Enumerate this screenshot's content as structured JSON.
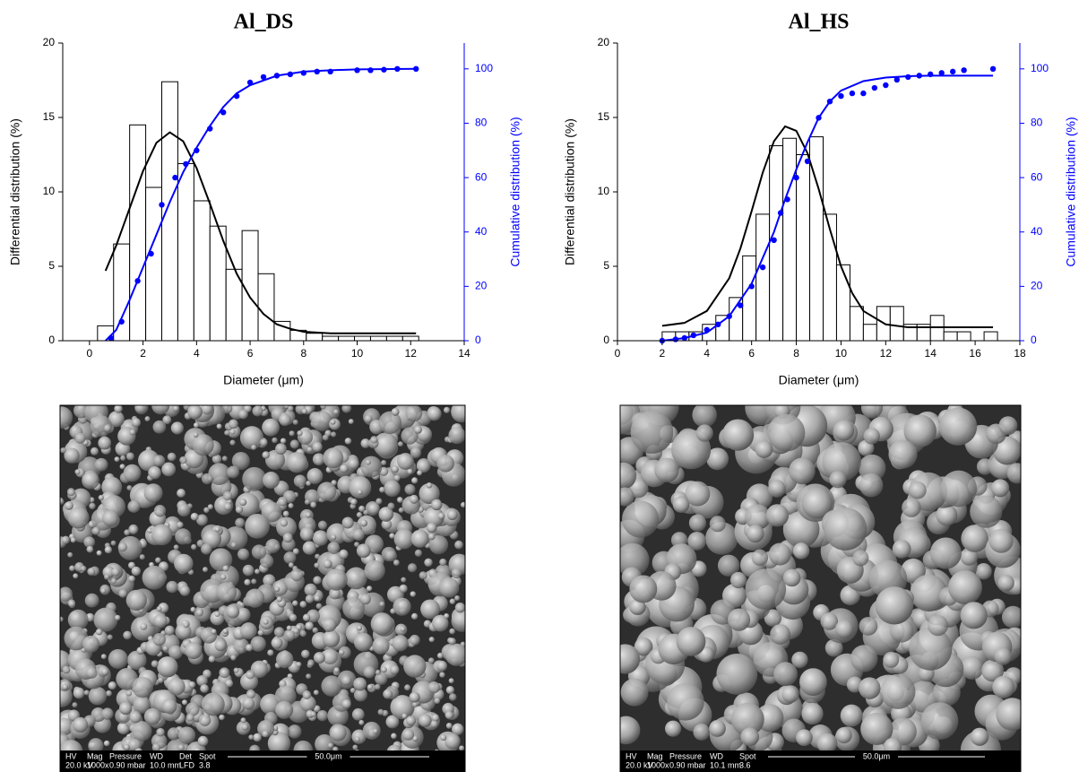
{
  "chart_data": [
    {
      "type": "histogram",
      "title": "Al_DS",
      "xlabel": "Diameter (μm)",
      "ylabel": "Differential distribution (%)",
      "y2label": "Cumulative distribution (%)",
      "xlim": [
        -1,
        14
      ],
      "xticks": [
        0,
        2,
        4,
        6,
        8,
        10,
        12,
        14
      ],
      "ylim": [
        0,
        20
      ],
      "yticks": [
        0,
        5,
        10,
        15,
        20
      ],
      "y2lim": [
        0,
        109.5
      ],
      "y2ticks": [
        0,
        20,
        40,
        60,
        80,
        100
      ],
      "bar_color": "#000000",
      "y2_color": "#0000ff",
      "bins": [
        0.3,
        0.9,
        1.5,
        2.1,
        2.7,
        3.3,
        3.9,
        4.5,
        5.1,
        5.7,
        6.3,
        6.9,
        7.5,
        8.1,
        8.7,
        9.3,
        9.9,
        10.5,
        11.1,
        11.7,
        12.3
      ],
      "counts": [
        1,
        6.5,
        14.5,
        10.3,
        17.4,
        11.9,
        9.4,
        7.7,
        4.8,
        7.4,
        4.5,
        1.3,
        0.7,
        0.5,
        0.3,
        0.3,
        0.3,
        0.3,
        0.3,
        0.3
      ],
      "series": [
        {
          "type": "line",
          "color": "#000000",
          "x": [
            0.6,
            1,
            1.5,
            2,
            2.5,
            3,
            3.5,
            4,
            4.5,
            5,
            5.5,
            6,
            6.5,
            7,
            7.5,
            8,
            9,
            10,
            12.2
          ],
          "values": [
            4.7,
            6.4,
            8.9,
            11.4,
            13.3,
            14,
            13.4,
            11.6,
            9.2,
            6.7,
            4.5,
            2.9,
            1.8,
            1.1,
            0.8,
            0.6,
            0.5,
            0.5,
            0.5
          ]
        },
        {
          "type": "scatter",
          "color": "#0000ff",
          "axis": "y2",
          "x": [
            0.8,
            1.2,
            1.8,
            2.3,
            2.7,
            3.2,
            3.6,
            4,
            4.5,
            5,
            5.5,
            6,
            6.5,
            7,
            7.5,
            8,
            8.5,
            9,
            10,
            10.5,
            11,
            11.5,
            12.2
          ],
          "values": [
            1,
            7,
            22,
            32,
            50,
            60,
            65,
            70,
            78,
            84,
            90,
            95,
            97,
            97.5,
            98,
            98.5,
            99,
            99,
            99.5,
            99.5,
            99.7,
            100,
            100
          ]
        },
        {
          "type": "line",
          "color": "#0000ff",
          "axis": "y2",
          "x": [
            0.6,
            1,
            1.5,
            2,
            2.5,
            3,
            3.5,
            4,
            4.5,
            5,
            5.5,
            6,
            7,
            8,
            9,
            10,
            12.2
          ],
          "values": [
            0,
            4,
            15,
            27,
            39,
            51,
            62,
            71,
            79,
            86,
            91,
            94,
            97.5,
            99,
            99.5,
            99.8,
            100
          ]
        }
      ]
    },
    {
      "type": "histogram",
      "title": "Al_HS",
      "xlabel": "Diameter (μm)",
      "ylabel": "Differential distribution (%)",
      "y2label": "Cumulative distribution (%)",
      "xlim": [
        0,
        18
      ],
      "xticks": [
        0,
        2,
        4,
        6,
        8,
        10,
        12,
        14,
        16,
        18
      ],
      "ylim": [
        0,
        20
      ],
      "yticks": [
        0,
        5,
        10,
        15,
        20
      ],
      "y2lim": [
        0,
        109.5
      ],
      "y2ticks": [
        0,
        20,
        40,
        60,
        80,
        100
      ],
      "bar_color": "#000000",
      "y2_color": "#0000ff",
      "bins": [
        2,
        2.6,
        3.2,
        3.8,
        4.4,
        5,
        5.6,
        6.2,
        6.8,
        7.4,
        8,
        8.6,
        9.2,
        9.8,
        10.4,
        11,
        11.6,
        12.2,
        12.8,
        13.4,
        14,
        14.6,
        15.2,
        15.8,
        16.4,
        17
      ],
      "counts": [
        0.6,
        0.6,
        0.6,
        1.1,
        1.7,
        2.9,
        5.7,
        8.5,
        13.1,
        13.6,
        12.5,
        13.7,
        8.5,
        5.1,
        2.3,
        1.1,
        2.3,
        2.3,
        1.1,
        1.1,
        1.7,
        0.6,
        0.6,
        0,
        0.6
      ],
      "series": [
        {
          "type": "line",
          "color": "#000000",
          "x": [
            2,
            3,
            4,
            5,
            5.5,
            6,
            6.5,
            7,
            7.5,
            8,
            8.5,
            9,
            9.5,
            10,
            10.5,
            11,
            12,
            13,
            14,
            16.8
          ],
          "values": [
            1,
            1.2,
            2,
            4.2,
            6.2,
            8.7,
            11.3,
            13.4,
            14.4,
            14.1,
            12.6,
            10.2,
            7.5,
            5,
            3.2,
            2,
            1.1,
            0.9,
            0.9,
            0.9
          ]
        },
        {
          "type": "scatter",
          "color": "#0000ff",
          "axis": "y2",
          "x": [
            2,
            2.6,
            3,
            3.4,
            4,
            4.5,
            5,
            5.5,
            6,
            6.5,
            7,
            7.3,
            7.6,
            8,
            8.5,
            9,
            9.5,
            10,
            10.5,
            11,
            11.5,
            12,
            12.5,
            13,
            13.5,
            14,
            14.5,
            15,
            15.5,
            16.8
          ],
          "values": [
            0,
            0.5,
            1,
            2,
            4,
            6,
            9,
            13,
            20,
            27,
            37,
            47,
            52,
            60,
            66,
            82,
            88,
            90,
            91,
            91,
            93,
            94,
            96,
            97,
            97.5,
            98,
            98.5,
            99,
            99.5,
            100
          ]
        },
        {
          "type": "line",
          "color": "#0000ff",
          "axis": "y2",
          "x": [
            2,
            3,
            4,
            5,
            6,
            7,
            7.5,
            8,
            8.5,
            9,
            9.5,
            10,
            11,
            12,
            13,
            14,
            16.8
          ],
          "values": [
            0,
            1,
            3,
            9,
            21,
            40,
            52,
            63,
            73,
            82,
            88,
            92,
            95.5,
            96.8,
            97.3,
            97.5,
            97.5
          ]
        }
      ]
    }
  ],
  "micrographs": [
    {
      "fields": [
        "HV",
        "Mag",
        "Pressure",
        "WD",
        "Det",
        "Spot"
      ],
      "settings": [
        "20.0 kV",
        "1000x",
        "0.90 mbar",
        "10.0 mm",
        "LFD",
        "3.8"
      ],
      "scale": "50.0μm"
    },
    {
      "fields": [
        "HV",
        "Mag",
        "Pressure",
        "WD",
        "Spot"
      ],
      "settings": [
        "20.0 kV",
        "1000x",
        "0.90 mbar",
        "10.1 mm",
        "3.6"
      ],
      "scale": "50.0μm"
    }
  ]
}
